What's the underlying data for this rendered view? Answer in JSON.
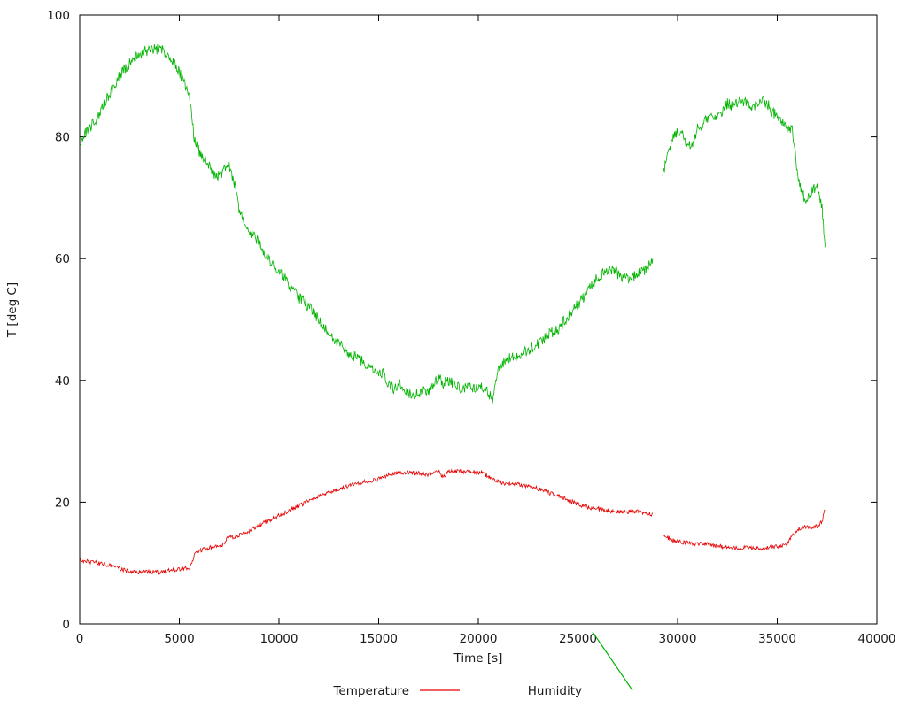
{
  "page": {
    "background": "#ffffff"
  },
  "chart_data": {
    "type": "line",
    "title": "",
    "xlabel": "Time [s]",
    "ylabel": "T [deg C]",
    "xlim": [
      0,
      40000
    ],
    "ylim": [
      0,
      100
    ],
    "xticks": [
      0,
      5000,
      10000,
      15000,
      20000,
      25000,
      30000,
      35000,
      40000
    ],
    "yticks": [
      0,
      20,
      40,
      60,
      80,
      100
    ],
    "grid": false,
    "legend_position": "bottom-center",
    "x": [
      0,
      250,
      500,
      750,
      1000,
      1250,
      1500,
      1750,
      2000,
      2250,
      2500,
      2750,
      3000,
      3250,
      3500,
      3750,
      4000,
      4250,
      4500,
      4750,
      5000,
      5250,
      5500,
      5750,
      6000,
      6250,
      6500,
      6750,
      7000,
      7250,
      7500,
      7750,
      8000,
      8250,
      8500,
      8750,
      9000,
      9250,
      9500,
      9750,
      10000,
      10250,
      10500,
      10750,
      11000,
      11250,
      11500,
      11750,
      12000,
      12250,
      12500,
      12750,
      13000,
      13250,
      13500,
      13750,
      14000,
      14250,
      14500,
      14750,
      15000,
      15250,
      15500,
      15750,
      16000,
      16250,
      16500,
      16750,
      17000,
      17250,
      17500,
      17750,
      18000,
      18250,
      18500,
      18750,
      19000,
      19250,
      19500,
      19750,
      20000,
      20250,
      20500,
      20750,
      21000,
      21250,
      21500,
      21750,
      22000,
      22250,
      22500,
      22750,
      23000,
      23250,
      23500,
      23750,
      24000,
      24250,
      24500,
      24750,
      25000,
      25250,
      25500,
      25750,
      26000,
      26250,
      26500,
      26750,
      27000,
      27250,
      27500,
      27750,
      28000,
      28250,
      28500,
      28750,
      29000,
      29250,
      29500,
      29750,
      30000,
      30250,
      30500,
      30750,
      31000,
      31250,
      31500,
      31750,
      32000,
      32250,
      32500,
      32750,
      33000,
      33250,
      33500,
      33750,
      34000,
      34250,
      34500,
      34750,
      35000,
      35250,
      35500,
      35750,
      36000,
      36250,
      36500,
      36750,
      37000,
      37250,
      37400
    ],
    "series": [
      {
        "name": "Temperature",
        "color": "#e60000",
        "noise": 0.35,
        "values": [
          10.5,
          10.3,
          10.2,
          10.1,
          10.0,
          9.8,
          9.6,
          9.3,
          9.1,
          8.8,
          8.6,
          8.5,
          8.5,
          8.5,
          8.5,
          8.5,
          8.5,
          8.6,
          8.8,
          8.9,
          9.0,
          9.1,
          9.3,
          11.2,
          12.0,
          12.3,
          12.5,
          12.6,
          12.8,
          13.2,
          14.6,
          14.1,
          14.5,
          15.0,
          15.3,
          15.8,
          16.2,
          16.6,
          17.0,
          17.4,
          17.8,
          18.2,
          18.6,
          19.0,
          19.4,
          19.8,
          20.2,
          20.6,
          21.0,
          21.3,
          21.6,
          21.9,
          22.2,
          22.4,
          22.7,
          22.9,
          23.1,
          23.3,
          23.4,
          23.6,
          23.8,
          24.2,
          24.5,
          24.6,
          24.8,
          24.7,
          24.9,
          24.8,
          24.7,
          24.6,
          24.5,
          24.8,
          25.0,
          24.1,
          25.2,
          25.1,
          25.2,
          25.0,
          25.1,
          25.0,
          24.9,
          24.8,
          24.2,
          23.8,
          23.3,
          23.1,
          23.0,
          23.0,
          22.9,
          22.8,
          22.7,
          22.5,
          22.2,
          21.9,
          21.6,
          21.3,
          21.0,
          20.7,
          20.3,
          20.0,
          19.7,
          19.4,
          19.2,
          19.0,
          18.9,
          18.7,
          18.6,
          18.5,
          18.5,
          18.4,
          18.4,
          18.5,
          18.5,
          18.3,
          18.1,
          17.9,
          null,
          14.6,
          14.2,
          13.8,
          13.6,
          13.4,
          13.3,
          13.2,
          13.1,
          13.2,
          13.1,
          12.9,
          12.8,
          12.7,
          12.6,
          12.6,
          12.5,
          12.5,
          12.5,
          12.5,
          12.4,
          12.5,
          12.5,
          12.6,
          12.7,
          12.8,
          13.2,
          14.5,
          15.5,
          15.8,
          16.0,
          15.9,
          16.0,
          16.8,
          19.0
        ]
      },
      {
        "name": "Humidity",
        "color": "#00b400",
        "noise": 0.9,
        "values": [
          78.5,
          80.5,
          81.5,
          82.5,
          84.0,
          85.5,
          87.0,
          88.5,
          90.0,
          91.0,
          92.0,
          93.0,
          93.5,
          94.0,
          94.3,
          94.5,
          94.4,
          94.0,
          93.0,
          92.0,
          90.5,
          89.0,
          87.0,
          79.5,
          77.5,
          76.5,
          75.0,
          74.0,
          73.5,
          74.5,
          75.5,
          72.5,
          68.0,
          66.0,
          64.5,
          63.5,
          62.5,
          61.0,
          60.0,
          59.0,
          58.0,
          57.0,
          55.5,
          54.5,
          53.5,
          53.0,
          52.0,
          51.0,
          50.0,
          49.0,
          48.0,
          47.0,
          46.0,
          45.5,
          44.5,
          44.0,
          43.5,
          43.0,
          42.5,
          42.0,
          41.5,
          41.0,
          39.5,
          38.5,
          39.5,
          38.5,
          38.0,
          37.5,
          38.0,
          38.5,
          38.0,
          39.5,
          40.5,
          39.5,
          40.0,
          39.5,
          39.0,
          38.5,
          39.0,
          38.5,
          38.5,
          39.0,
          38.0,
          36.8,
          42.0,
          43.0,
          43.5,
          44.0,
          44.0,
          44.5,
          45.0,
          45.5,
          46.0,
          46.5,
          47.5,
          48.0,
          48.5,
          49.5,
          50.5,
          51.5,
          52.5,
          53.5,
          54.5,
          56.0,
          57.0,
          57.5,
          58.0,
          58.0,
          57.5,
          57.0,
          56.5,
          57.0,
          57.5,
          58.0,
          58.5,
          60.0,
          null,
          73.5,
          77.0,
          79.5,
          81.0,
          80.5,
          78.5,
          78.5,
          81.5,
          82.0,
          83.0,
          83.5,
          83.0,
          84.0,
          85.5,
          85.0,
          85.5,
          86.0,
          85.5,
          85.0,
          85.5,
          86.0,
          85.5,
          84.0,
          83.5,
          82.5,
          81.5,
          81.0,
          74.5,
          70.5,
          69.5,
          71.0,
          72.0,
          68.5,
          62.0
        ]
      }
    ]
  }
}
